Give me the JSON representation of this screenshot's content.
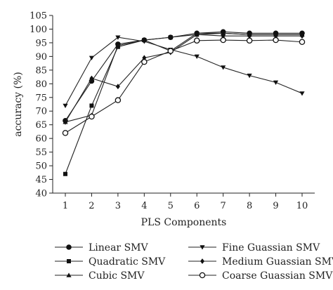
{
  "chart_data": {
    "type": "line",
    "title": "",
    "xlabel": "PLS Components",
    "ylabel": "accuracy (%)",
    "x": [
      1,
      2,
      3,
      4,
      5,
      6,
      7,
      8,
      9,
      10
    ],
    "xlim": [
      1,
      10
    ],
    "ylim": [
      40,
      105
    ],
    "yticks": [
      40,
      45,
      50,
      55,
      60,
      65,
      70,
      75,
      80,
      85,
      90,
      95,
      100,
      105
    ],
    "xticks": [
      1,
      2,
      3,
      4,
      5,
      6,
      7,
      8,
      9,
      10
    ],
    "grid": false,
    "legend_position": "bottom",
    "series": [
      {
        "name": "Linear SMV",
        "marker": "circle",
        "values": [
          66.5,
          81,
          94.5,
          96,
          97,
          98.5,
          99,
          98.5,
          98.5,
          98.5
        ]
      },
      {
        "name": "Quadratic SMV",
        "marker": "square",
        "values": [
          47,
          72,
          93.5,
          96,
          97,
          98,
          98.5,
          98,
          98,
          98
        ]
      },
      {
        "name": "Cubic SMV",
        "marker": "triangle-up",
        "values": [
          66,
          68.5,
          94,
          96,
          92,
          98.5,
          98.5,
          98,
          98,
          98
        ]
      },
      {
        "name": "Fine Guassian SMV",
        "marker": "triangle-down",
        "values": [
          72,
          89.5,
          97,
          95.5,
          92.5,
          90,
          86,
          83,
          80.5,
          76.5
        ]
      },
      {
        "name": "Medium Guassian SMV",
        "marker": "diamond",
        "values": [
          66,
          82,
          79,
          89.5,
          91.5,
          98,
          97.5,
          97.5,
          97.5,
          97.5
        ]
      },
      {
        "name": "Coarse Guassian SMV",
        "marker": "open-circle",
        "values": [
          62,
          68,
          74,
          88,
          92,
          95.8,
          96,
          95.8,
          96,
          95.3
        ]
      }
    ]
  }
}
